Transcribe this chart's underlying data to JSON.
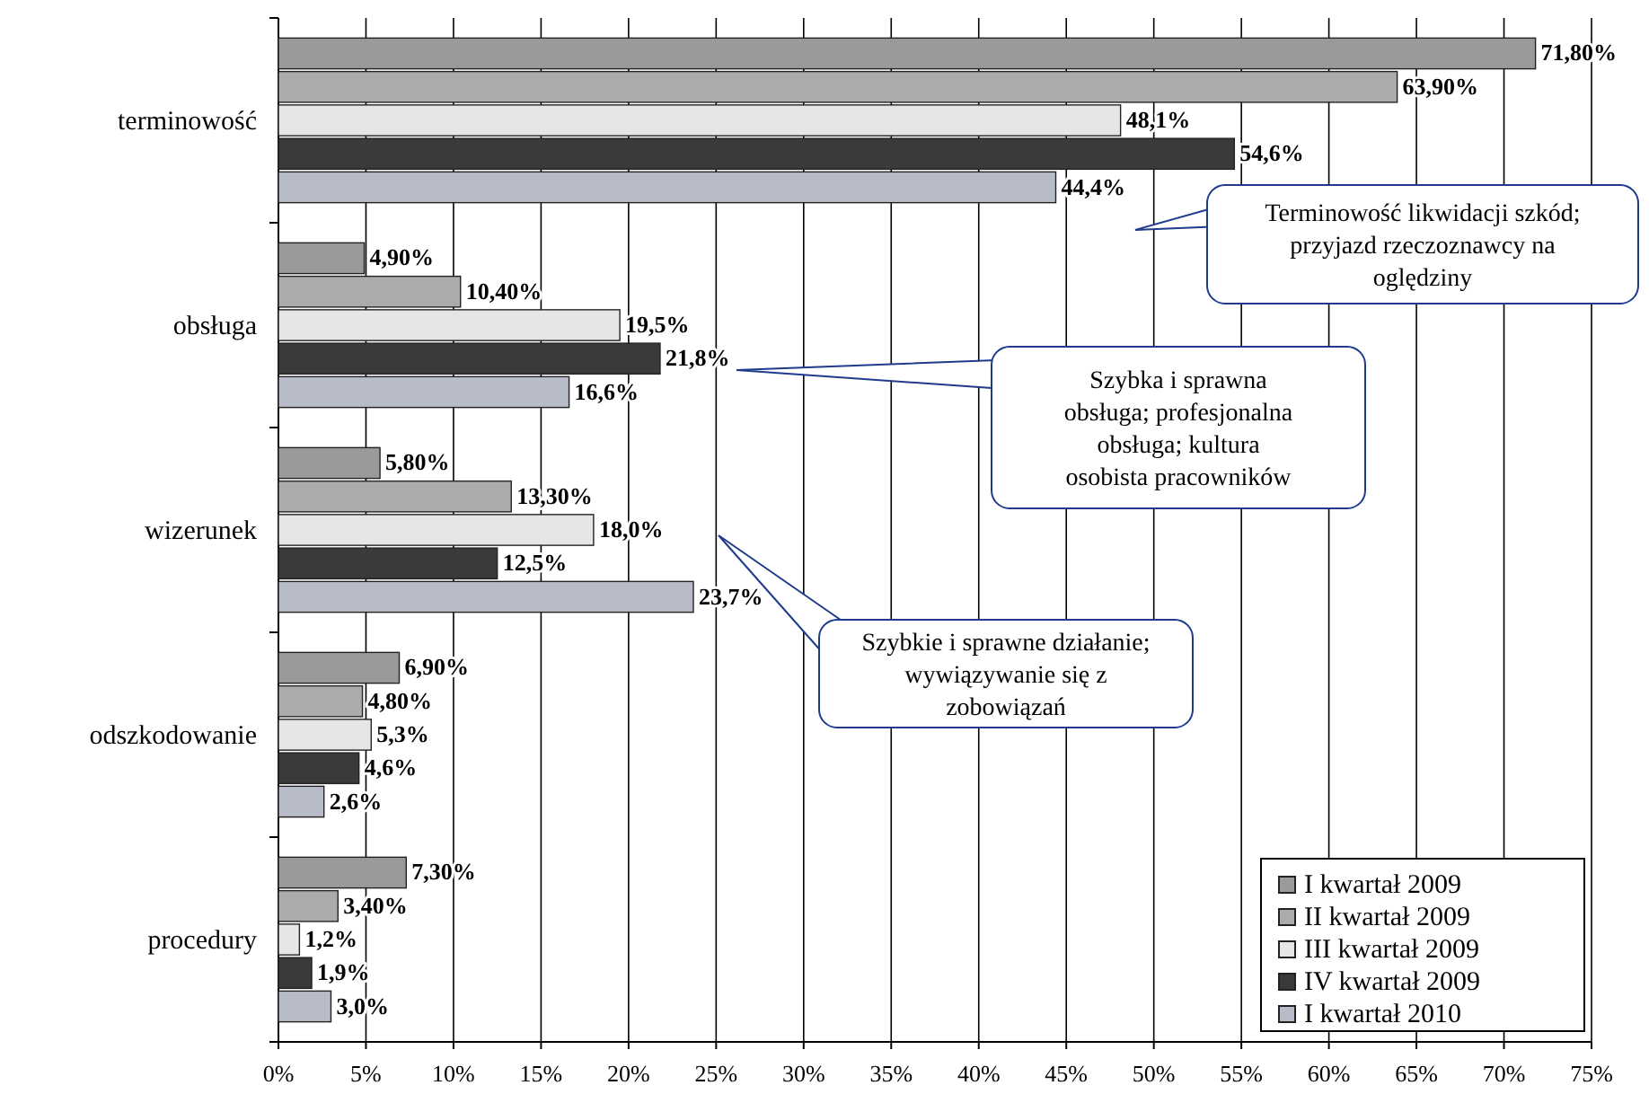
{
  "chart_data": {
    "type": "bar",
    "orientation": "horizontal",
    "categories": [
      "terminowość",
      "obsługa",
      "wizerunek",
      "odszkodowanie",
      "procedury"
    ],
    "series": [
      {
        "name": "I kwartał 2009",
        "color": "#9a9a9a",
        "values": [
          71.8,
          4.9,
          5.8,
          6.9,
          7.3
        ],
        "value_labels": [
          "71,80%",
          "4,90%",
          "5,80%",
          "6,90%",
          "7,30%"
        ]
      },
      {
        "name": "II kwartał 2009",
        "color": "#ababab",
        "values": [
          63.9,
          10.4,
          13.3,
          4.8,
          3.4
        ],
        "value_labels": [
          "63,90%",
          "10,40%",
          "13,30%",
          "4,80%",
          "3,40%"
        ]
      },
      {
        "name": "III kwartał 2009",
        "color": "#e6e6e6",
        "values": [
          48.1,
          19.5,
          18.0,
          5.3,
          1.2
        ],
        "value_labels": [
          "48,1%",
          "19,5%",
          "18,0%",
          "5,3%",
          "1,2%"
        ]
      },
      {
        "name": "IV kwartał 2009",
        "color": "#3a3a3a",
        "values": [
          54.6,
          21.8,
          12.5,
          4.6,
          1.9
        ],
        "value_labels": [
          "54,6%",
          "21,8%",
          "12,5%",
          "4,6%",
          "1,9%"
        ]
      },
      {
        "name": "I kwartał 2010",
        "color": "#b8bcc8",
        "values": [
          44.4,
          16.6,
          23.7,
          2.6,
          3.0
        ],
        "value_labels": [
          "44,4%",
          "16,6%",
          "23,7%",
          "2,6%",
          "3,0%"
        ]
      }
    ],
    "xlim": [
      0,
      75
    ],
    "xticks": [
      {
        "value": 0,
        "label": "0%"
      },
      {
        "value": 5,
        "label": "5%"
      },
      {
        "value": 10,
        "label": "10%"
      },
      {
        "value": 15,
        "label": "15%"
      },
      {
        "value": 20,
        "label": "20%"
      },
      {
        "value": 25,
        "label": "25%"
      },
      {
        "value": 30,
        "label": "30%"
      },
      {
        "value": 35,
        "label": "35%"
      },
      {
        "value": 40,
        "label": "40%"
      },
      {
        "value": 45,
        "label": "45%"
      },
      {
        "value": 50,
        "label": "50%"
      },
      {
        "value": 55,
        "label": "55%"
      },
      {
        "value": 60,
        "label": "60%"
      },
      {
        "value": 65,
        "label": "65%"
      },
      {
        "value": 70,
        "label": "70%"
      },
      {
        "value": 75,
        "label": "75%"
      }
    ],
    "grid": "x",
    "legend": "bottom right",
    "annotations": [
      "Terminowość likwidacji szkód; przyjazd rzeczoznawcy na oględziny",
      "Szybka i sprawna obsługa; profesjonalna obsługa; kultura osobista pracowników",
      "Szybkie i sprawne działanie; wywiązywanie się z zobowiązań"
    ]
  }
}
